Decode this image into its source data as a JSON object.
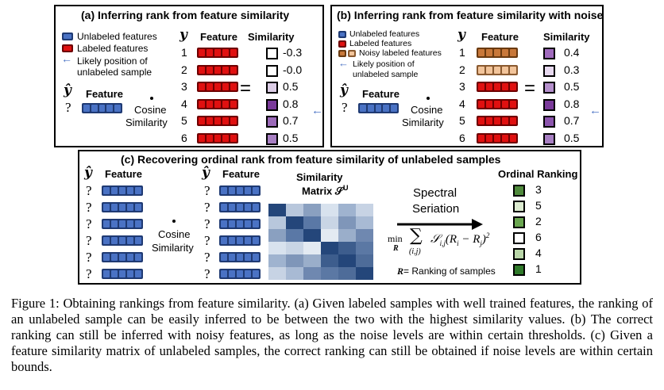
{
  "panel_a": {
    "title": "(a) Inferring rank from feature similarity",
    "legend": [
      "Unlabeled features",
      "Labeled features",
      "Likely position of",
      "unlabeled sample"
    ],
    "y_label": "y",
    "feature_label": "Feature",
    "similarity_label": "Similarity",
    "yhat": "ŷ",
    "q": "?",
    "cosine": "Cosine",
    "similarity": "Similarity",
    "equals": "=",
    "ranks": [
      "1",
      "2",
      "3",
      "4",
      "5",
      "6"
    ],
    "values": [
      "-0.3",
      "-0.0",
      "0.5",
      "0.8",
      "0.7",
      "0.5"
    ],
    "square_colors": [
      "#ffffff",
      "#ffffff",
      "#dccde6",
      "#7a3a9a",
      "#9b6ab8",
      "#a77fc2"
    ]
  },
  "panel_b": {
    "title": "(b) Inferring rank from feature similarity with noise",
    "legend": [
      "Unlabeled features",
      "Labeled features",
      "Noisy labeled features",
      "Likely position of",
      "unlabeled sample"
    ],
    "y_label": "y",
    "feature_label": "Feature",
    "similarity_label": "Similarity",
    "yhat": "ŷ",
    "q": "?",
    "cosine": "Cosine",
    "similarity": "Similarity",
    "equals": "=",
    "ranks": [
      "1",
      "2",
      "3",
      "4",
      "5",
      "6"
    ],
    "values": [
      "0.4",
      "0.3",
      "0.5",
      "0.8",
      "0.7",
      "0.5"
    ],
    "square_colors": [
      "#a06bbd",
      "#e7d9ef",
      "#b48fcb",
      "#7a3a9a",
      "#8c55ad",
      "#a77fc2"
    ],
    "bar_styles": [
      "brown",
      "peach",
      "red",
      "red",
      "red",
      "red"
    ]
  },
  "panel_c": {
    "title": "(c) Recovering ordinal rank from feature similarity of unlabeled samples",
    "yhat": "ŷ",
    "feature_label": "Feature",
    "q": "?",
    "cosine": "Cosine",
    "similarity": "Similarity",
    "equals": "=",
    "matrix_label_1": "Similarity",
    "matrix_label_2": "Matrix 𝒮",
    "matrix_sup": "U",
    "spectral_1": "Spectral",
    "spectral_2": "Seriation",
    "min_label": "min",
    "min_sub": "R",
    "sum_sub": "(i,j)",
    "formula": "𝒮",
    "formula_rest": "(R",
    "ranking_note": "= Ranking of samples",
    "ranking_note_bold": "R",
    "ordinal_title": "Ordinal Ranking",
    "ordinal_values": [
      "3",
      "5",
      "2",
      "6",
      "4",
      "1"
    ],
    "ordinal_colors": [
      "#4f8a3c",
      "#dcebd0",
      "#6aa650",
      "#ffffff",
      "#b9d6a8",
      "#2f7a2a"
    ],
    "matrix": [
      [
        "#24467a",
        "#b8c7dc",
        "#8aa0c0",
        "#d8e2ee",
        "#9fb3cf",
        "#c7d3e4"
      ],
      [
        "#b8c7dc",
        "#24467a",
        "#5a78a6",
        "#c9d5e5",
        "#7f96b9",
        "#a8bad4"
      ],
      [
        "#8aa0c0",
        "#5a78a6",
        "#24467a",
        "#e3eaf2",
        "#9aaeca",
        "#6f88b0"
      ],
      [
        "#d8e2ee",
        "#c9d5e5",
        "#e3eaf2",
        "#24467a",
        "#3d5d8d",
        "#5b78a4"
      ],
      [
        "#9fb3cf",
        "#7f96b9",
        "#9aaeca",
        "#3d5d8d",
        "#24467a",
        "#4e6c99"
      ],
      [
        "#c7d3e4",
        "#a8bad4",
        "#6f88b0",
        "#5b78a4",
        "#4e6c99",
        "#24467a"
      ]
    ]
  },
  "caption": "Figure 1: Obtaining rankings from feature similarity. (a) Given labeled samples with well trained features, the ranking of an unlabeled sample can be easily inferred to be between the two with the highest similarity values. (b) The correct ranking can still be inferred with noisy features, as long as the noise levels are within certain thresholds. (c) Given a feature similarity matrix of unlabeled samples, the correct ranking can still be obtained if noise levels are within certain bounds."
}
